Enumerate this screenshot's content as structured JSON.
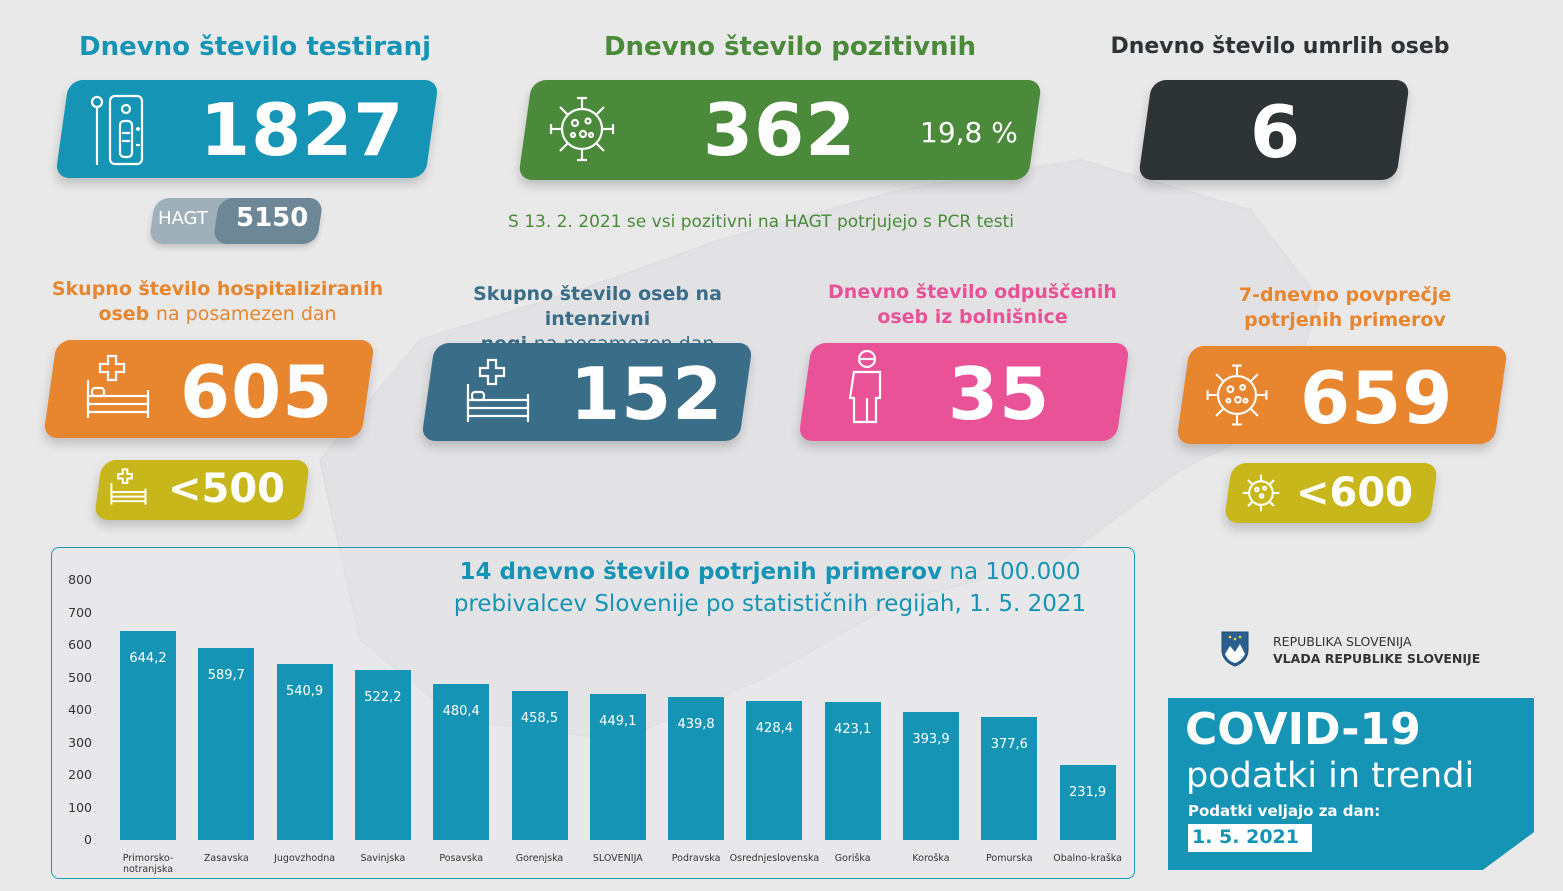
{
  "testing": {
    "title": "Dnevno število testiranj",
    "value": "1827",
    "hagt_label": "HAGT",
    "hagt_value": "5150"
  },
  "positive": {
    "title": "Dnevno število pozitivnih",
    "value": "362",
    "percent": "19,8 %",
    "note": "S 13. 2. 2021 se vsi pozitivni na HAGT potrjujejo s PCR testi"
  },
  "deaths": {
    "title": "Dnevno število umrlih oseb",
    "value": "6"
  },
  "hospitalized": {
    "title_bold_1": "Skupno število hospitaliziranih",
    "title_bold_2": "oseb",
    "title_normal": "na posamezen dan",
    "value": "605",
    "threshold": "<500"
  },
  "icu": {
    "title_bold_1": "Skupno število oseb na intenzivni",
    "title_bold_2": "negi",
    "title_normal": "na posamezen dan",
    "value": "152"
  },
  "discharged": {
    "title_1": "Dnevno število odpuščenih",
    "title_2": "oseb iz bolnišnice",
    "value": "35"
  },
  "avg7": {
    "title_1": "7-dnevno povprečje",
    "title_2": "potrjenih primerov",
    "value": "659",
    "threshold": "<600"
  },
  "colors": {
    "teal": "#1694b5",
    "green": "#4a8a3a",
    "dark": "#2e3436",
    "orange": "#e8852f",
    "slate": "#3a6e88",
    "pink": "#ea5297",
    "yellow": "#c8b71b"
  },
  "chart_data": {
    "type": "bar",
    "title_bold": "14 dnevno število potrjenih primerov",
    "title_normal_1": "na 100.000",
    "title_normal_2": "prebivalcev Slovenije po statističnih regijah, 1. 5. 2021",
    "categories": [
      "Primorsko-notranjska",
      "Zasavska",
      "Jugovzhodna",
      "Savinjska",
      "Posavska",
      "Gorenjska",
      "SLOVENIJA",
      "Podravska",
      "Osrednjeslovenska",
      "Goriška",
      "Koroška",
      "Pomurska",
      "Obalno-kraška"
    ],
    "values": [
      644.2,
      589.7,
      540.9,
      522.2,
      480.4,
      458.5,
      449.1,
      439.8,
      428.4,
      423.1,
      393.9,
      377.6,
      231.9
    ],
    "value_labels": [
      "644,2",
      "589,7",
      "540,9",
      "522,2",
      "480,4",
      "458,5",
      "449,1",
      "439,8",
      "428,4",
      "423,1",
      "393,9",
      "377,6",
      "231,9"
    ],
    "yticks": [
      "800",
      "700",
      "600",
      "500",
      "400",
      "300",
      "200",
      "100",
      "0"
    ],
    "ylim": [
      0,
      800
    ],
    "grid": false
  },
  "branding": {
    "line1": "REPUBLIKA SLOVENIJA",
    "line2": "VLADA REPUBLIKE SLOVENIJE"
  },
  "footer": {
    "title": "COVID-19",
    "subtitle": "podatki in trendi",
    "valid_label": "Podatki veljajo za dan:",
    "date": "1. 5. 2021"
  }
}
